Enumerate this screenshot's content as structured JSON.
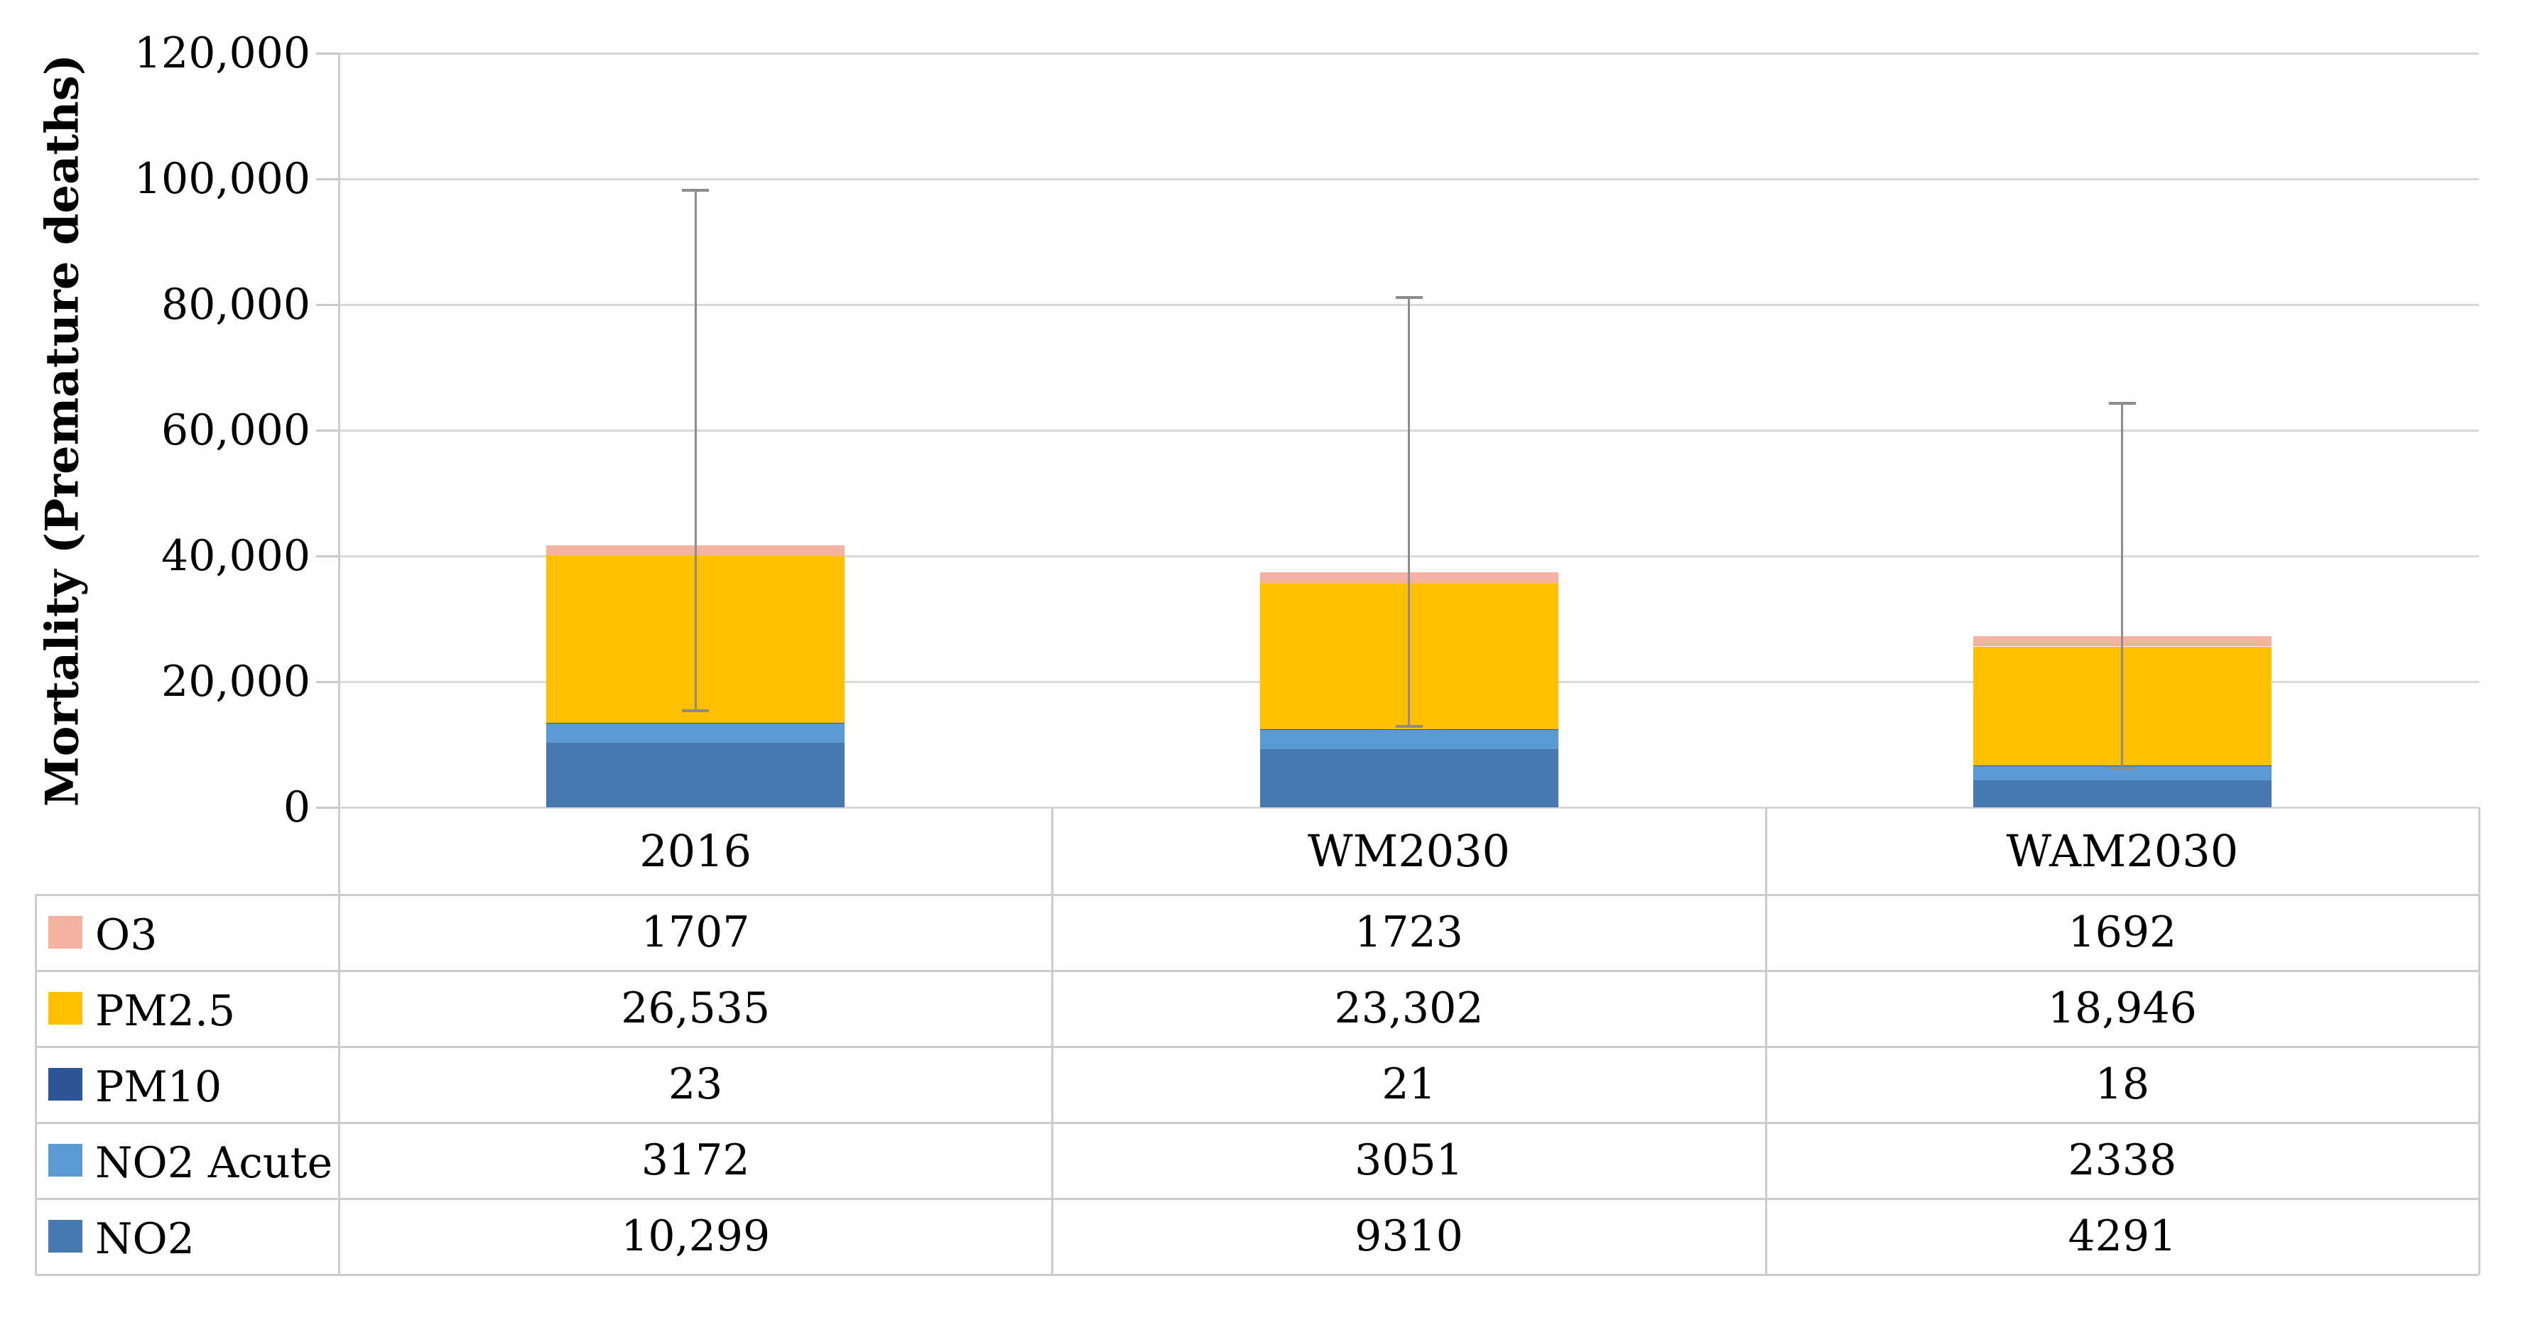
{
  "chart_data": {
    "type": "bar",
    "stacked": true,
    "title": "",
    "ylabel": "Mortality (Premature deaths)",
    "xlabel": "",
    "ylim": [
      0,
      120000
    ],
    "grid": true,
    "legend_position": "table-left",
    "categories": [
      "2016",
      "WM2030",
      "WAM2030"
    ],
    "series": [
      {
        "name": "NO2",
        "color": "#4779B0",
        "values": [
          10299,
          9310,
          4291
        ],
        "display": [
          "10,299",
          "9310",
          "4291"
        ]
      },
      {
        "name": "NO2 Acute",
        "color": "#5B9BD5",
        "values": [
          3172,
          3051,
          2338
        ],
        "display": [
          "3172",
          "3051",
          "2338"
        ]
      },
      {
        "name": "PM10",
        "color": "#2E5697",
        "values": [
          23,
          21,
          18
        ],
        "display": [
          "23",
          "21",
          "18"
        ]
      },
      {
        "name": "PM2.5",
        "color": "#FFC000",
        "values": [
          26535,
          23302,
          18946
        ],
        "display": [
          "26,535",
          "23,302",
          "18,946"
        ]
      },
      {
        "name": "O3",
        "color": "#F3B3A0",
        "values": [
          1707,
          1723,
          1692
        ],
        "display": [
          "1707",
          "1723",
          "1692"
        ]
      }
    ],
    "error_bars": [
      {
        "low": 15400,
        "high": 98200
      },
      {
        "low": 12900,
        "high": 81100
      },
      {
        "low": 6200,
        "high": 64300
      }
    ],
    "y_ticks": [
      "0",
      "20,000",
      "40,000",
      "60,000",
      "80,000",
      "100,000",
      "120,000"
    ]
  }
}
